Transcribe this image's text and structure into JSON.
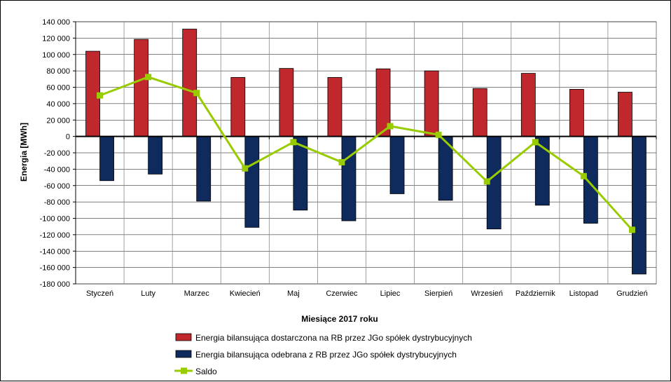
{
  "chart_data": {
    "type": "bar",
    "categories": [
      "Styczeń",
      "Luty",
      "Marzec",
      "Kwiecień",
      "Maj",
      "Czerwiec",
      "Lipiec",
      "Sierpień",
      "Wrzesień",
      "Październik",
      "Listopad",
      "Grudzień"
    ],
    "series": [
      {
        "name": "Energia bilansująca dostarczona na RB przez JGo spółek dystrybucyjnych",
        "type": "bar",
        "color": "#c0282d",
        "values": [
          104000,
          118500,
          131000,
          72000,
          83000,
          72000,
          82500,
          80000,
          58500,
          77000,
          57500,
          54000
        ]
      },
      {
        "name": "Energia bilansująca odebrana z RB przez JGo spółek dystrybucyjnych",
        "type": "bar",
        "color": "#0f2a5c",
        "values": [
          -54000,
          -46000,
          -79000,
          -111000,
          -90000,
          -103000,
          -70000,
          -78000,
          -113000,
          -84000,
          -106000,
          -168000
        ]
      },
      {
        "name": "Saldo",
        "type": "line",
        "color": "#99cc00",
        "values": [
          50000,
          72500,
          53000,
          -39000,
          -7000,
          -31500,
          12500,
          2000,
          -55000,
          -7000,
          -48500,
          -114000
        ]
      }
    ],
    "xlabel": "Miesiące 2017  roku",
    "ylabel": "Energia [MWh]",
    "ylim": [
      -180000,
      140000
    ],
    "yticks": [
      140000,
      120000,
      100000,
      80000,
      60000,
      40000,
      20000,
      0,
      -20000,
      -40000,
      -60000,
      -80000,
      -100000,
      -120000,
      -140000,
      -160000,
      -180000
    ],
    "ytick_labels": [
      "140 000",
      "120 000",
      "100 000",
      "80 000",
      "60 000",
      "40 000",
      "20 000",
      "0",
      "-20 000",
      "-40 000",
      "-60 000",
      "-80 000",
      "-100 000",
      "-120 000",
      "-140 000",
      "-160 000",
      "-180 000"
    ],
    "grid": true,
    "legend_position": "bottom"
  }
}
